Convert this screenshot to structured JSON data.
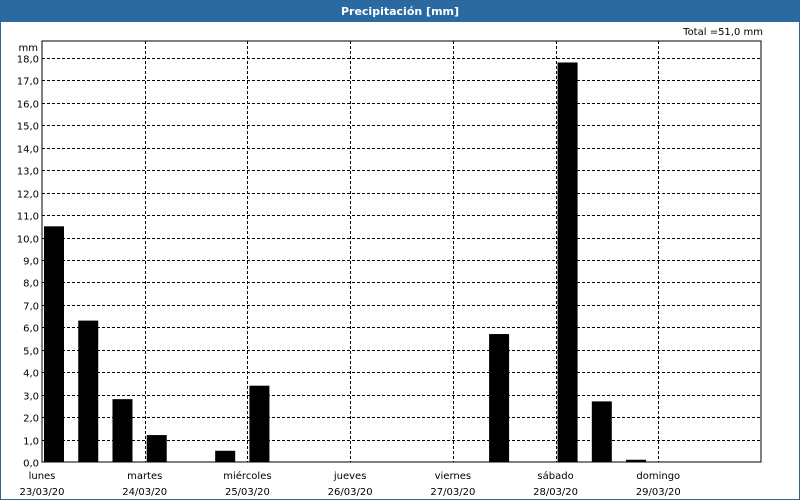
{
  "window": {
    "title": "Precipitación [mm]"
  },
  "total_label": "Total =51,0 mm",
  "chart_data": {
    "type": "bar",
    "title": "Precipitación [mm]",
    "ylabel": "mm",
    "xlabel": "",
    "ylim": [
      0,
      18.0
    ],
    "yticks": [
      "0,0",
      "1,0",
      "2,0",
      "3,0",
      "4,0",
      "5,0",
      "6,0",
      "7,0",
      "8,0",
      "9,0",
      "10,0",
      "11,0",
      "12,0",
      "13,0",
      "14,0",
      "15,0",
      "16,0",
      "17,0",
      "18,0"
    ],
    "days": [
      {
        "day": "lunes",
        "date": "23/03/20"
      },
      {
        "day": "martes",
        "date": "24/03/20"
      },
      {
        "day": "miércoles",
        "date": "25/03/20"
      },
      {
        "day": "jueves",
        "date": "26/03/20"
      },
      {
        "day": "viernes",
        "date": "27/03/20"
      },
      {
        "day": "sábado",
        "date": "28/03/20"
      },
      {
        "day": "domingo",
        "date": "29/03/20"
      }
    ],
    "bars_per_day": 3,
    "values": [
      10.5,
      6.3,
      2.8,
      1.2,
      0,
      0.5,
      3.4,
      0,
      0,
      0,
      0,
      0,
      0,
      5.7,
      0,
      17.8,
      2.7,
      0.1,
      0,
      0,
      0
    ],
    "bar_color": "#000000",
    "grid": true,
    "total": 51.0
  }
}
